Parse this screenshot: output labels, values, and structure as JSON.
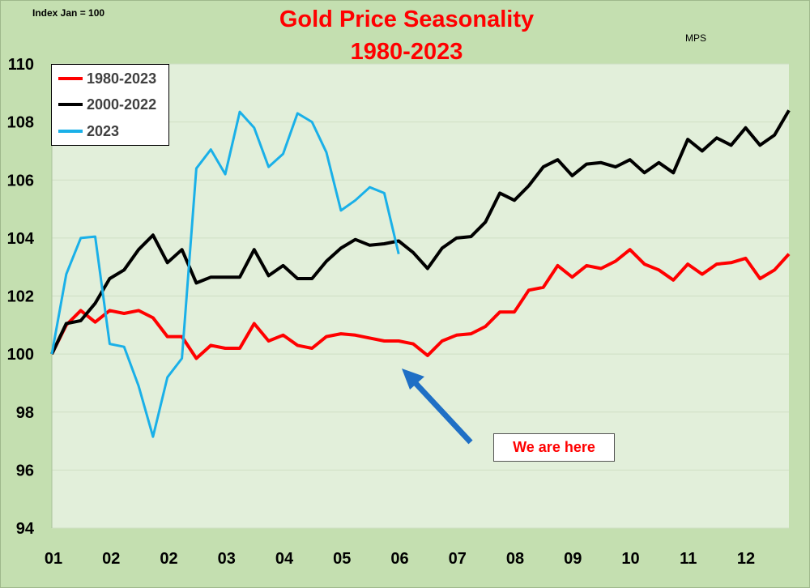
{
  "header": {
    "title_line1": "Gold Price Seasonality",
    "title_line2": "1980-2023",
    "index_label": "Index Jan = 100",
    "source_mark": "MPS"
  },
  "annotation": {
    "text": "We are here",
    "arrow_color": "#1f6fc5"
  },
  "colors": {
    "plot_background": "#e2efda",
    "outer_background": "#c4dfb0",
    "series_1980_2023": "#ff0000",
    "series_2000_2022": "#000000",
    "series_2023": "#1ab0e8"
  },
  "chart_data": {
    "type": "line",
    "title": "Gold Price Seasonality 1980-2023",
    "xlabel": "",
    "ylabel": "Index Jan = 100",
    "ylim": [
      94,
      110
    ],
    "yticks": [
      94,
      96,
      98,
      100,
      102,
      104,
      106,
      108,
      110
    ],
    "x_tick_labels": [
      "01",
      "02",
      "02",
      "03",
      "04",
      "05",
      "06",
      "07",
      "08",
      "09",
      "10",
      "11",
      "12"
    ],
    "x_count": 52,
    "grid": "horizontal",
    "legend_position": "top-left",
    "series": [
      {
        "name": "1980-2023",
        "color": "#ff0000",
        "values": [
          100.0,
          101.0,
          101.5,
          101.1,
          101.5,
          101.4,
          101.5,
          101.25,
          100.6,
          100.6,
          99.85,
          100.3,
          100.2,
          100.2,
          101.05,
          100.45,
          100.65,
          100.3,
          100.2,
          100.6,
          100.7,
          100.65,
          100.55,
          100.45,
          100.45,
          100.35,
          99.95,
          100.45,
          100.65,
          100.7,
          100.95,
          101.45,
          101.45,
          102.2,
          102.3,
          103.05,
          102.65,
          103.05,
          102.95,
          103.2,
          103.6,
          103.1,
          102.9,
          102.55,
          103.1,
          102.75,
          103.1,
          103.15,
          103.3,
          102.6,
          102.9,
          103.45
        ]
      },
      {
        "name": "2000-2022",
        "color": "#000000",
        "values": [
          100.0,
          101.05,
          101.15,
          101.75,
          102.6,
          102.9,
          103.6,
          104.1,
          103.15,
          103.6,
          102.45,
          102.65,
          102.65,
          102.65,
          103.6,
          102.7,
          103.05,
          102.6,
          102.6,
          103.2,
          103.65,
          103.95,
          103.75,
          103.8,
          103.9,
          103.5,
          102.95,
          103.65,
          104.0,
          104.05,
          104.55,
          105.55,
          105.3,
          105.8,
          106.45,
          106.7,
          106.15,
          106.55,
          106.6,
          106.45,
          106.7,
          106.25,
          106.6,
          106.25,
          107.4,
          107.0,
          107.45,
          107.2,
          107.8,
          107.2,
          107.55,
          108.4
        ]
      },
      {
        "name": "2023",
        "color": "#1ab0e8",
        "values": [
          100.0,
          102.75,
          104.0,
          104.05,
          100.35,
          100.25,
          98.9,
          97.15,
          99.2,
          99.85,
          106.4,
          107.05,
          106.2,
          108.35,
          107.8,
          106.45,
          106.9,
          108.3,
          108.0,
          106.95,
          104.95,
          105.3,
          105.75,
          105.55,
          103.45
        ]
      }
    ]
  }
}
